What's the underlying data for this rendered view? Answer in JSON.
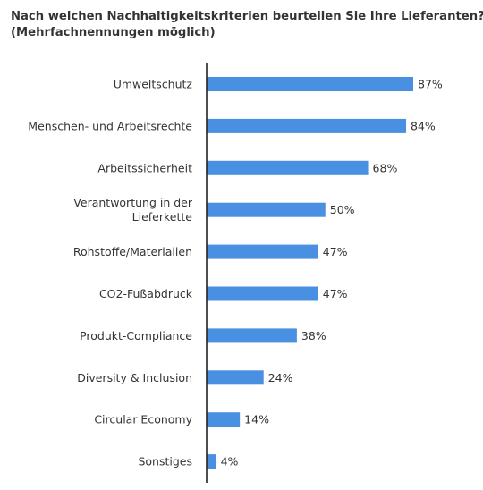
{
  "chart_data": {
    "type": "bar",
    "orientation": "horizontal",
    "title": "Nach welchen Nachhaltigkeitskriterien beurteilen Sie Ihre Lieferanten?",
    "subtitle": "(Mehrfachnennungen möglich)",
    "categories": [
      "Umweltschutz",
      "Menschen- und Arbeitsrechte",
      "Arbeitssicherheit",
      "Verantwortung in der Lieferkette",
      "Rohstoffe/Materialien",
      "CO2-Fußabdruck",
      "Produkt-Compliance",
      "Diversity & Inclusion",
      "Circular Economy",
      "Sonstiges"
    ],
    "category_lines": [
      [
        "Umweltschutz"
      ],
      [
        "Menschen- und Arbeitsrechte"
      ],
      [
        "Arbeitssicherheit"
      ],
      [
        "Verantwortung in der",
        "Lieferkette"
      ],
      [
        "Rohstoffe/Materialien"
      ],
      [
        "CO2-Fußabdruck"
      ],
      [
        "Produkt-Compliance"
      ],
      [
        "Diversity & Inclusion"
      ],
      [
        "Circular Economy"
      ],
      [
        "Sonstiges"
      ]
    ],
    "values": [
      87,
      84,
      68,
      50,
      47,
      47,
      38,
      24,
      14,
      4
    ],
    "value_labels": [
      "87%",
      "84%",
      "68%",
      "50%",
      "47%",
      "47%",
      "38%",
      "24%",
      "14%",
      "4%"
    ],
    "unit": "%",
    "xlim": [
      0,
      100
    ],
    "grid": false,
    "bar_color": "#4a90e2",
    "axis_color": "#222222"
  }
}
